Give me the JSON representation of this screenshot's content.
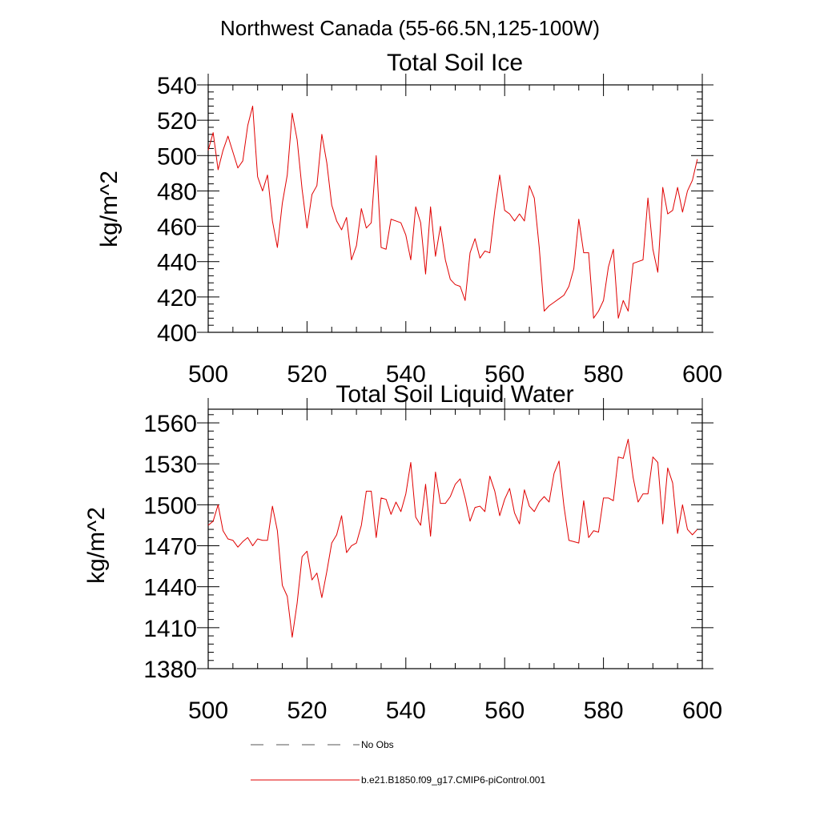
{
  "figure": {
    "title": "Northwest Canada (55-66.5N,125-100W)",
    "line_color": "#e00000",
    "legend": [
      {
        "label": "No Obs",
        "style": "dashed",
        "color": "#555555"
      },
      {
        "label": "b.e21.B1850.f09_g17.CMIP6-piControl.001",
        "style": "solid",
        "color": "#e00000"
      }
    ]
  },
  "chart_data": [
    {
      "type": "line",
      "title": "Total Soil Ice",
      "xlabel": "",
      "ylabel": "kg/m^2",
      "xlim": [
        500,
        600
      ],
      "ylim": [
        400,
        540
      ],
      "xticks": [
        500,
        520,
        540,
        560,
        580,
        600
      ],
      "yticks": [
        400,
        420,
        440,
        460,
        480,
        500,
        520,
        540
      ],
      "grid": false,
      "x_start": 500,
      "series": [
        {
          "values": [
            503,
            513,
            492,
            503,
            511,
            502,
            493,
            497,
            517,
            528,
            488,
            480,
            489,
            463,
            448,
            473,
            489,
            524,
            509,
            481,
            459,
            478,
            483,
            512,
            496,
            472,
            463,
            458,
            465,
            441,
            449,
            470,
            459,
            462,
            500,
            448,
            447,
            464,
            463,
            462,
            455,
            441,
            471,
            462,
            433,
            471,
            443,
            460,
            441,
            430,
            427,
            426,
            418,
            445,
            453,
            442,
            446,
            445,
            469,
            489,
            469,
            467,
            463,
            467,
            463,
            483,
            476,
            448,
            412,
            415,
            417,
            419,
            421,
            426,
            436,
            464,
            445,
            445,
            408,
            412,
            418,
            437,
            447,
            408,
            418,
            412,
            439,
            440,
            441,
            476,
            447,
            434,
            482,
            467,
            469,
            482,
            468,
            480,
            486,
            498
          ]
        }
      ]
    },
    {
      "type": "line",
      "title": "Total Soil Liquid Water",
      "xlabel": "",
      "ylabel": "kg/m^2",
      "xlim": [
        500,
        600
      ],
      "ylim": [
        1380,
        1570
      ],
      "xticks": [
        500,
        520,
        540,
        560,
        580,
        600
      ],
      "yticks": [
        1380,
        1410,
        1440,
        1470,
        1500,
        1530,
        1560
      ],
      "grid": false,
      "x_start": 500,
      "series": [
        {
          "values": [
            1485,
            1488,
            1500,
            1481,
            1475,
            1474,
            1469,
            1473,
            1476,
            1470,
            1475,
            1474,
            1474,
            1499,
            1481,
            1441,
            1433,
            1403,
            1428,
            1462,
            1466,
            1445,
            1450,
            1432,
            1451,
            1472,
            1478,
            1492,
            1465,
            1470,
            1472,
            1485,
            1510,
            1510,
            1476,
            1505,
            1504,
            1493,
            1502,
            1495,
            1508,
            1531,
            1491,
            1485,
            1515,
            1477,
            1524,
            1501,
            1501,
            1506,
            1515,
            1519,
            1505,
            1488,
            1498,
            1499,
            1495,
            1521,
            1510,
            1492,
            1504,
            1512,
            1494,
            1486,
            1511,
            1499,
            1495,
            1502,
            1506,
            1502,
            1523,
            1532,
            1499,
            1474,
            1473,
            1472,
            1503,
            1476,
            1481,
            1480,
            1505,
            1505,
            1503,
            1535,
            1534,
            1548,
            1520,
            1502,
            1508,
            1508,
            1535,
            1531,
            1486,
            1527,
            1516,
            1479,
            1500,
            1482,
            1478,
            1482
          ]
        }
      ]
    }
  ]
}
